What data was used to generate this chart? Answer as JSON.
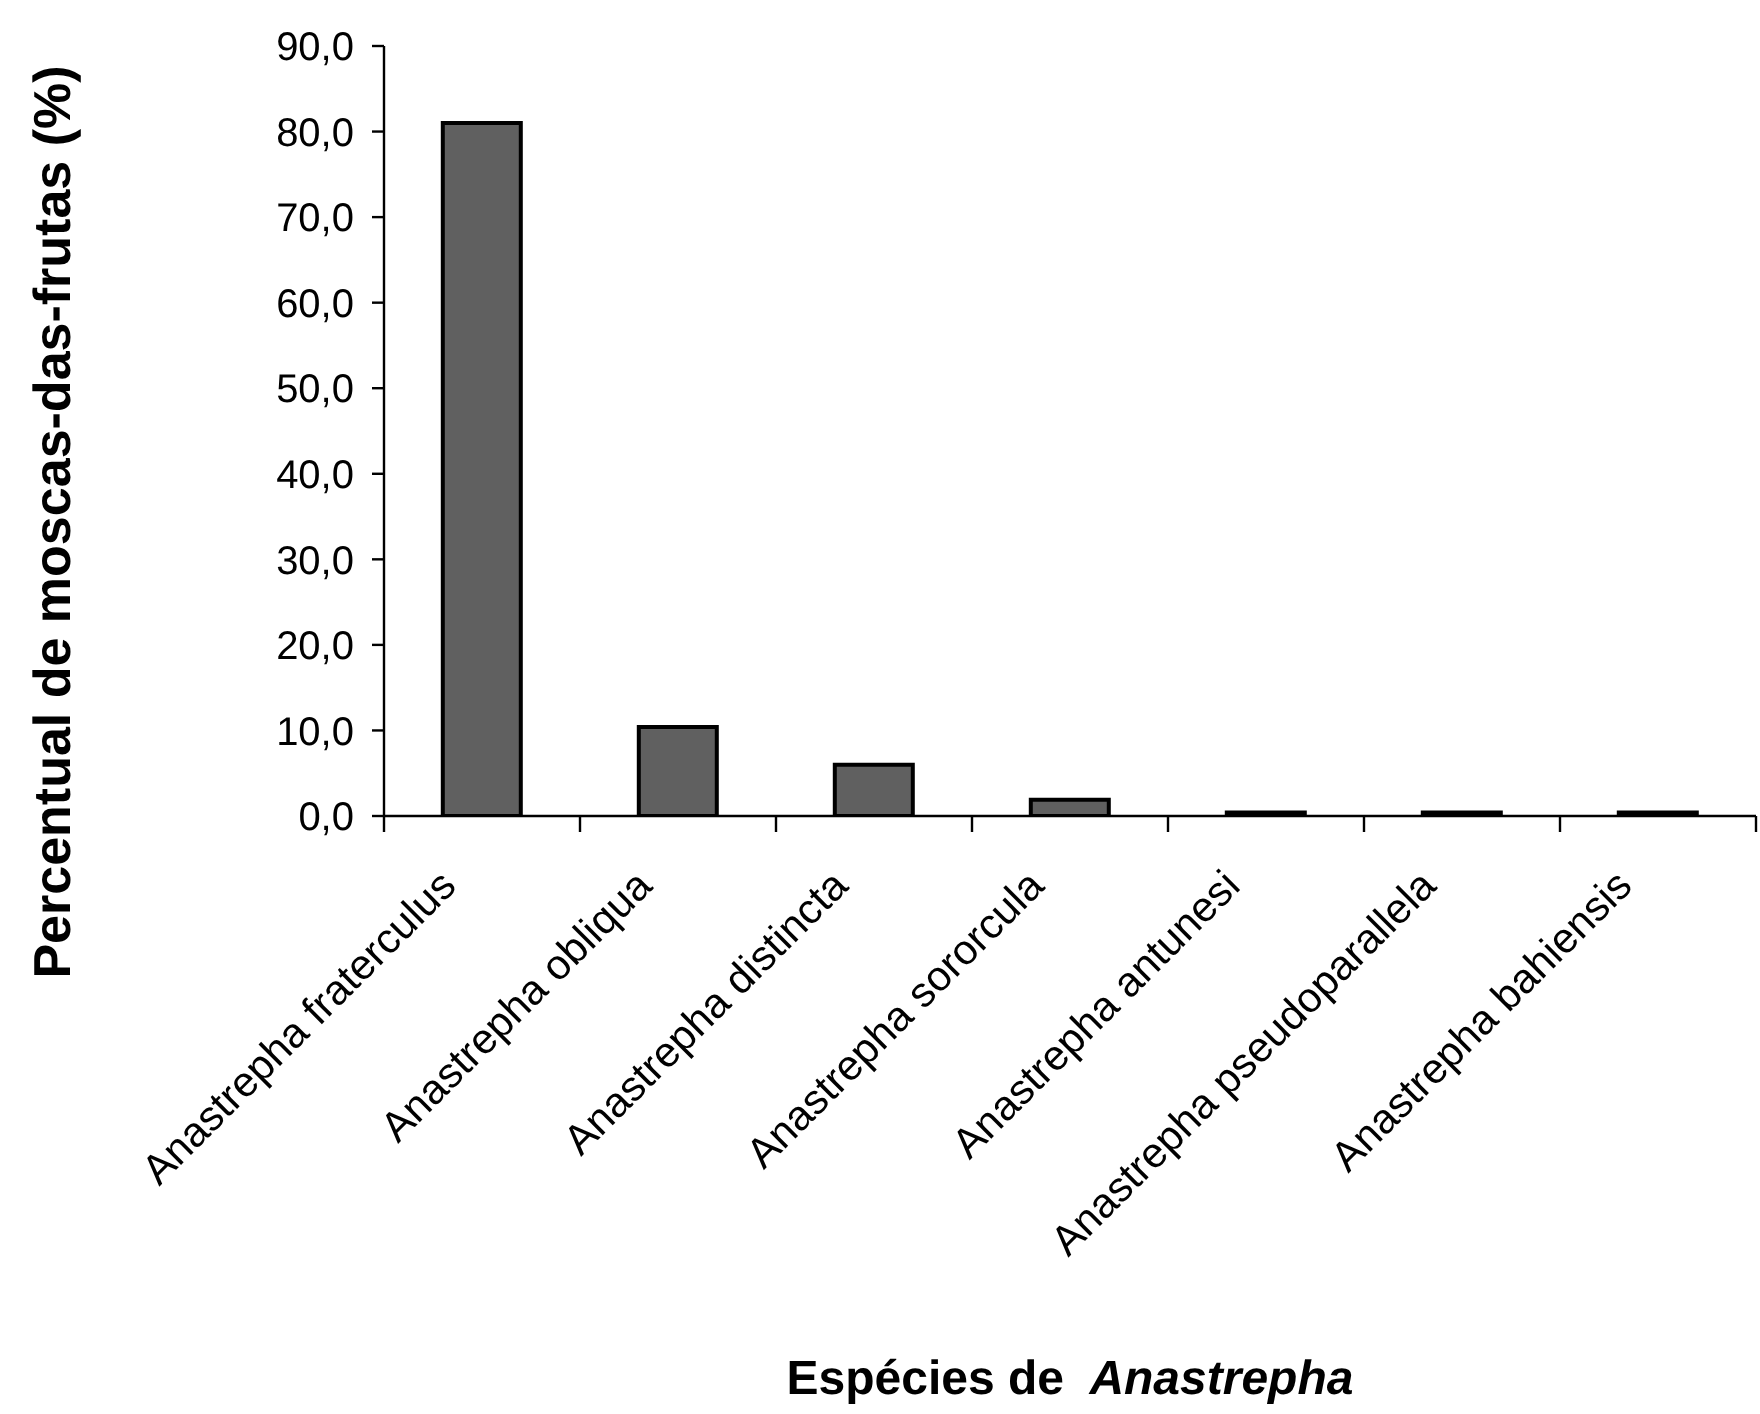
{
  "chart_data": {
    "type": "bar",
    "xlabel": "Espécies de Anastrepha",
    "ylabel": "Percentual de moscas-das-frutas (%)",
    "categories": [
      "Anastrepha fraterculus",
      "Anastrepha obliqua",
      "Anastrepha distincta",
      "Anastrepha sororcula",
      "Anastrepha antunesi",
      "Anastrepha pseudoparallela",
      "Anastrepha bahiensis"
    ],
    "values": [
      81.0,
      10.4,
      6.0,
      1.9,
      0.4,
      0.4,
      0.4
    ],
    "color": "#606060",
    "ylim": [
      0,
      90
    ],
    "yticks": [
      {
        "value": 0,
        "label": "0,0"
      },
      {
        "value": 10,
        "label": "10,0"
      },
      {
        "value": 20,
        "label": "20,0"
      },
      {
        "value": 30,
        "label": "30,0"
      },
      {
        "value": 40,
        "label": "40,0"
      },
      {
        "value": 50,
        "label": "50,0"
      },
      {
        "value": 60,
        "label": "60,0"
      },
      {
        "value": 70,
        "label": "70,0"
      },
      {
        "value": 80,
        "label": "80,0"
      },
      {
        "value": 90,
        "label": "90,0"
      }
    ]
  }
}
